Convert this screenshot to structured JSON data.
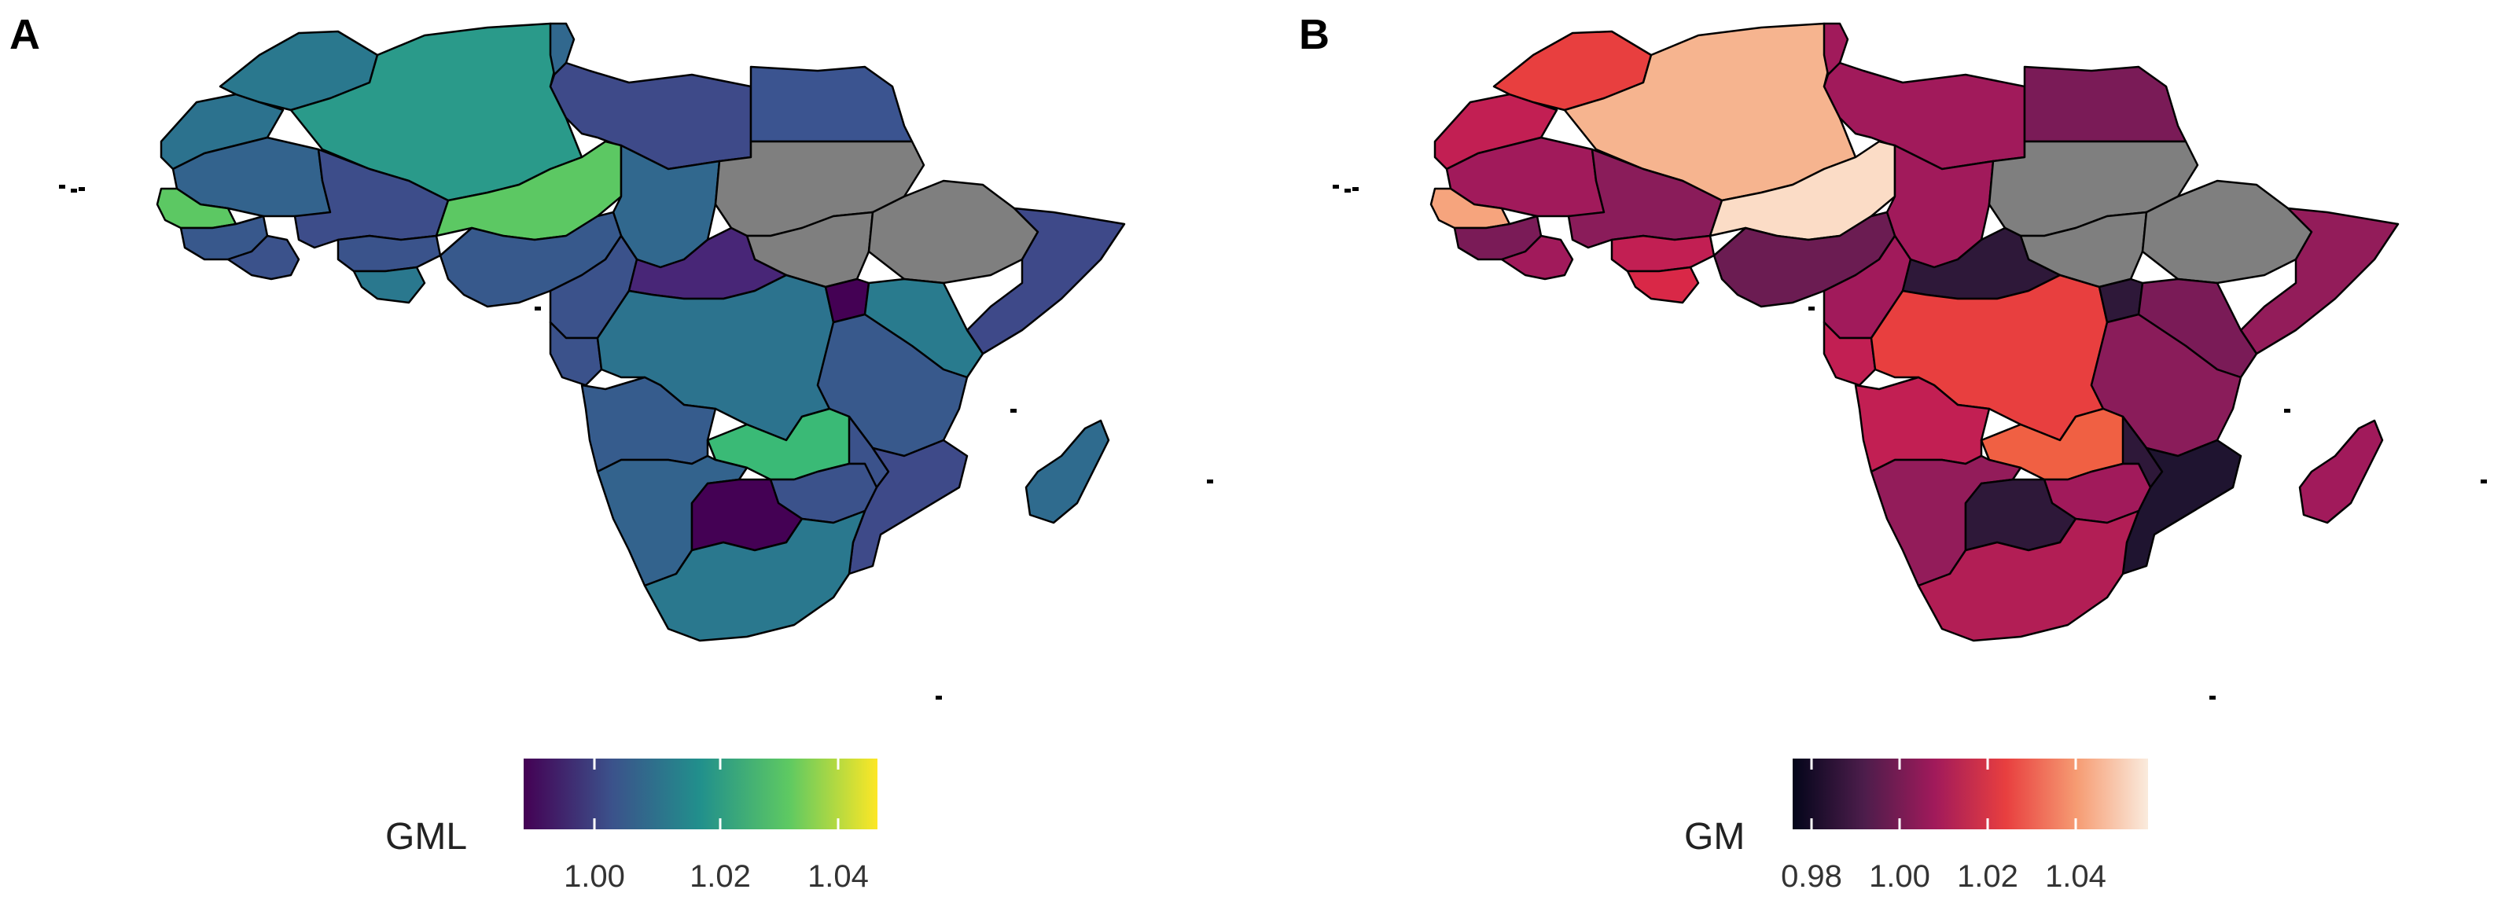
{
  "panels": [
    {
      "label": "A",
      "legend_title": "GML",
      "ticks": [
        "1.00",
        "1.02",
        "1.04"
      ],
      "scale": "viridis",
      "gradient_stops": [
        "#440154",
        "#3b528b",
        "#21908c",
        "#5ec962",
        "#fde725"
      ],
      "no_data_color": "#7f7f7f",
      "regions": {
        "morocco": "#2a788e",
        "algeria": "#2a9a8a",
        "tunisia": "#31688e",
        "libya": "#3e4a89",
        "egypt": "#3b5490",
        "western-sahara": "#2c728e",
        "mauritania": "#33638d",
        "mali": "#3d4d8a",
        "niger": "#5cc863",
        "chad": "#31688e",
        "sudan": "#7f7f7f",
        "south-sudan": "#7f7f7f",
        "ethiopia": "#7f7f7f",
        "somalia": "#3e4989",
        "senegal": "#5cc863",
        "guinea": "#38588c",
        "burkina-faso": "#3a538b",
        "nigeria": "#37598c",
        "west-coast": "#3b528b",
        "ghana": "#2a788e",
        "car": "#482677",
        "cameroon": "#3b528b",
        "gabon": "#3b528b",
        "drc": "#2c738e",
        "uganda": "#440154",
        "kenya": "#297b8e",
        "tanzania": "#38598c",
        "angola": "#365c8d",
        "zambia": "#3aba76",
        "mozambique": "#3e4a89",
        "malawi": "#3b528b",
        "zimbabwe": "#3b528b",
        "namibia": "#33638d",
        "botswana": "#440154",
        "south-africa": "#2a788e",
        "madagascar": "#2f6b8e"
      }
    },
    {
      "label": "B",
      "legend_title": "GM",
      "ticks": [
        "0.98",
        "1.00",
        "1.02",
        "1.04"
      ],
      "scale": "rocket",
      "gradient_stops": [
        "#03051a",
        "#4c1d4b",
        "#a11a5b",
        "#e83f3f",
        "#f69c73",
        "#faebdd"
      ],
      "no_data_color": "#7f7f7f",
      "regions": {
        "morocco": "#e83f3f",
        "algeria": "#f6b48f",
        "tunisia": "#a11a5b",
        "libya": "#a11a5b",
        "egypt": "#7a1b57",
        "western-sahara": "#c21f53",
        "mauritania": "#a11a5b",
        "mali": "#8a1c5a",
        "niger": "#fbdcc6",
        "chad": "#a11a5b",
        "sudan": "#7f7f7f",
        "south-sudan": "#7f7f7f",
        "ethiopia": "#7f7f7f",
        "somalia": "#931c5a",
        "senegal": "#f6a47d",
        "guinea": "#7a1b57",
        "burkina-faso": "#c21f53",
        "nigeria": "#6b1c52",
        "west-coast": "#a11a5b",
        "ghana": "#d92847",
        "car": "#2e1839",
        "cameroon": "#a11a5b",
        "gabon": "#c21f53",
        "drc": "#e83f3f",
        "uganda": "#2e1839",
        "kenya": "#7a1b57",
        "tanzania": "#8a1c5a",
        "angola": "#c21f53",
        "zambia": "#f06043",
        "mozambique": "#1f1430",
        "malawi": "#2e1839",
        "zimbabwe": "#a11a5b",
        "namibia": "#931c5a",
        "botswana": "#2e1839",
        "south-africa": "#b21e55",
        "madagascar": "#a11a5b"
      }
    }
  ]
}
